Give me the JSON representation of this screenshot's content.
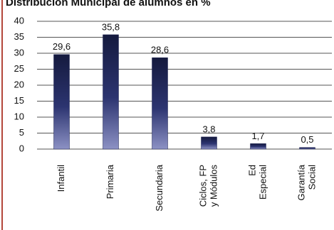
{
  "chart_data": {
    "type": "bar",
    "title": "Distribución Municipal de alumnos en %",
    "categories": [
      [
        "Infantil"
      ],
      [
        "Primaria"
      ],
      [
        "Secundaria"
      ],
      [
        "Ciclos, FP",
        "y Módulos"
      ],
      [
        "Ed",
        "Especial"
      ],
      [
        "Garantía",
        "Social"
      ]
    ],
    "values": [
      29.6,
      35.8,
      28.6,
      3.8,
      1.7,
      0.5
    ],
    "value_labels": [
      "29,6",
      "35,8",
      "28,6",
      "3,8",
      "1,7",
      "0,5"
    ],
    "color": "#1c2250",
    "ylim": [
      0,
      40
    ],
    "yticks": [
      0,
      5,
      10,
      15,
      20,
      25,
      30,
      35,
      40
    ],
    "grid": true
  }
}
